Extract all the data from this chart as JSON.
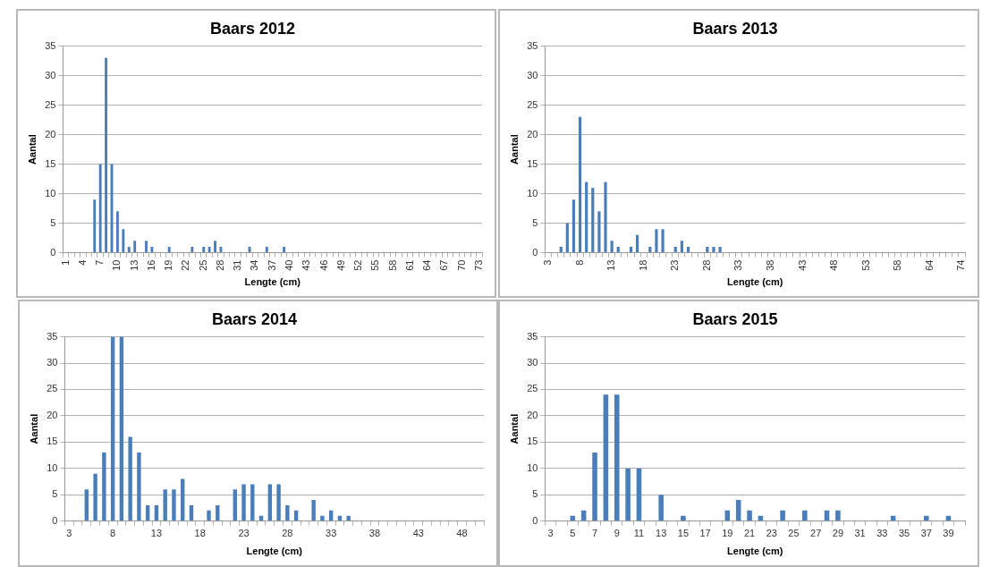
{
  "chart_data": [
    {
      "type": "bar",
      "title": "Baars 2012",
      "xlabel": "Lengte (cm)",
      "ylabel": "Aantal",
      "color": "#4a7ebb",
      "grid": "y",
      "legend": false,
      "ylim": [
        0,
        35
      ],
      "yticks": [
        0,
        5,
        10,
        15,
        20,
        25,
        30,
        35
      ],
      "categories": [
        "1",
        null,
        null,
        "4",
        null,
        null,
        "7",
        null,
        null,
        "10",
        null,
        null,
        "13",
        null,
        null,
        "16",
        null,
        null,
        "19",
        null,
        null,
        "22",
        null,
        null,
        "25",
        null,
        null,
        "28",
        null,
        null,
        "31",
        null,
        null,
        "34",
        null,
        null,
        "37",
        null,
        null,
        "40",
        null,
        null,
        "43",
        null,
        null,
        "46",
        null,
        null,
        "49",
        null,
        null,
        "52",
        null,
        null,
        "55",
        null,
        null,
        "58",
        null,
        null,
        "61",
        null,
        null,
        "64",
        null,
        null,
        "67",
        null,
        null,
        "70",
        null,
        null,
        "73"
      ],
      "values": [
        0,
        0,
        0,
        0,
        0,
        9,
        15,
        33,
        15,
        7,
        4,
        1,
        2,
        0,
        2,
        1,
        0,
        0,
        1,
        0,
        0,
        0,
        1,
        0,
        1,
        1,
        2,
        1,
        0,
        0,
        0,
        0,
        1,
        0,
        0,
        1,
        0,
        0,
        1,
        0,
        0,
        0,
        0,
        0,
        0,
        0,
        0,
        0,
        0,
        0,
        0,
        0,
        0,
        0,
        0,
        0,
        0,
        0,
        0,
        0,
        0,
        0,
        0,
        0,
        0,
        0,
        0,
        0,
        0,
        0,
        0,
        0,
        0
      ]
    },
    {
      "type": "bar",
      "title": "Baars 2013",
      "xlabel": "Lengte (cm)",
      "ylabel": "Aantal",
      "color": "#4a7ebb",
      "grid": "y",
      "legend": false,
      "ylim": [
        0,
        35
      ],
      "yticks": [
        0,
        5,
        10,
        15,
        20,
        25,
        30,
        35
      ],
      "categories": [
        "3",
        null,
        null,
        null,
        null,
        "8",
        null,
        null,
        null,
        null,
        "13",
        null,
        null,
        null,
        null,
        "18",
        null,
        null,
        null,
        null,
        "23",
        null,
        null,
        null,
        null,
        "28",
        null,
        null,
        null,
        null,
        "33",
        null,
        null,
        null,
        null,
        "38",
        null,
        null,
        null,
        null,
        "43",
        null,
        null,
        null,
        null,
        "48",
        null,
        null,
        null,
        null,
        "53",
        null,
        null,
        null,
        null,
        "58",
        null,
        null,
        null,
        null,
        "64",
        null,
        null,
        null,
        null,
        "74"
      ],
      "values": [
        0,
        0,
        1,
        5,
        9,
        23,
        12,
        11,
        7,
        12,
        2,
        1,
        0,
        1,
        3,
        0,
        1,
        4,
        4,
        0,
        1,
        2,
        1,
        0,
        0,
        1,
        1,
        1,
        0,
        0,
        0,
        0,
        0,
        0,
        0,
        0,
        0,
        0,
        0,
        0,
        0,
        0,
        0,
        0,
        0,
        0,
        0,
        0,
        0,
        0,
        0,
        0,
        0,
        0,
        0,
        0,
        0,
        0,
        0,
        0,
        0,
        0,
        0,
        0,
        0,
        0
      ]
    },
    {
      "type": "bar",
      "title": "Baars 2014",
      "xlabel": "Lengte (cm)",
      "ylabel": "Aantal",
      "color": "#4a7ebb",
      "grid": "y",
      "legend": false,
      "ylim": [
        0,
        35
      ],
      "yticks": [
        0,
        5,
        10,
        15,
        20,
        25,
        30,
        35
      ],
      "categories": [
        "3",
        null,
        null,
        null,
        null,
        "8",
        null,
        null,
        null,
        null,
        "13",
        null,
        null,
        null,
        null,
        "18",
        null,
        null,
        null,
        null,
        "23",
        null,
        null,
        null,
        null,
        "28",
        null,
        null,
        null,
        null,
        "33",
        null,
        null,
        null,
        null,
        "38",
        null,
        null,
        null,
        null,
        "43",
        null,
        null,
        null,
        null,
        "48",
        null,
        null
      ],
      "values": [
        0,
        0,
        6,
        9,
        13,
        35,
        35,
        16,
        13,
        3,
        3,
        6,
        6,
        8,
        3,
        0,
        2,
        3,
        0,
        6,
        7,
        7,
        1,
        7,
        7,
        3,
        2,
        0,
        4,
        1,
        2,
        1,
        1,
        0,
        0,
        0,
        0,
        0,
        0,
        0,
        0,
        0,
        0,
        0,
        0,
        0,
        0,
        0
      ]
    },
    {
      "type": "bar",
      "title": "Baars 2015",
      "xlabel": "Lengte (cm)",
      "ylabel": "Aantal",
      "color": "#4a7ebb",
      "grid": "y",
      "legend": false,
      "ylim": [
        0,
        35
      ],
      "yticks": [
        0,
        5,
        10,
        15,
        20,
        25,
        30,
        35
      ],
      "categories": [
        "3",
        null,
        "5",
        null,
        "7",
        null,
        "9",
        null,
        "11",
        null,
        "13",
        null,
        "15",
        null,
        "17",
        null,
        "19",
        null,
        "21",
        null,
        "23",
        null,
        "25",
        null,
        "27",
        null,
        "29",
        null,
        "31",
        null,
        "33",
        null,
        "35",
        null,
        "37",
        null,
        "39",
        null
      ],
      "values": [
        0,
        0,
        1,
        2,
        13,
        24,
        24,
        10,
        10,
        0,
        5,
        0,
        1,
        0,
        0,
        0,
        2,
        4,
        2,
        1,
        0,
        2,
        0,
        2,
        0,
        2,
        2,
        0,
        0,
        0,
        0,
        1,
        0,
        0,
        1,
        0,
        1,
        0
      ]
    }
  ]
}
